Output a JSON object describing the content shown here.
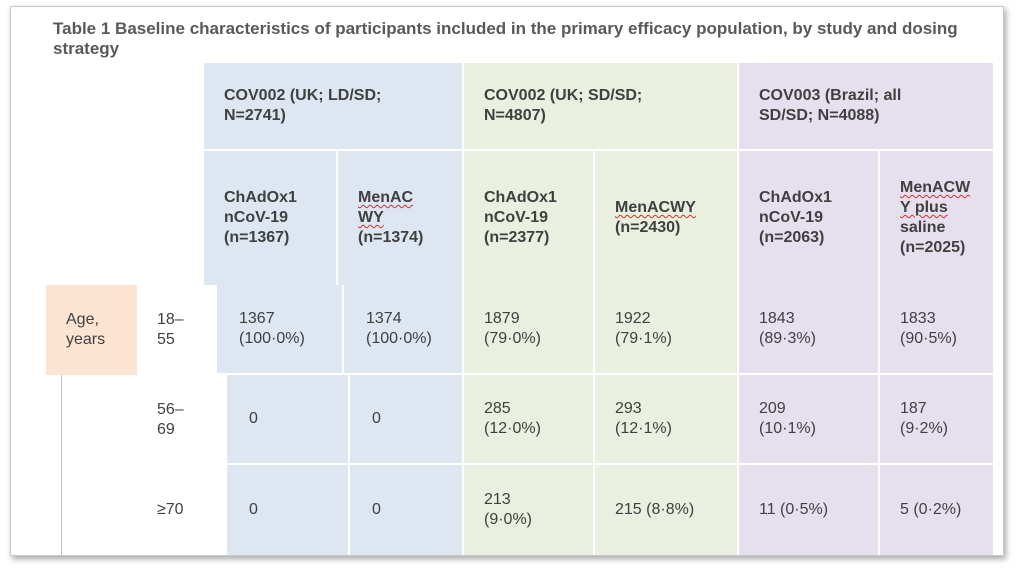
{
  "title": "Table 1 Baseline characteristics of participants included in the primary efficacy population, by study and dosing strategy",
  "groups": [
    {
      "line1": "COV002 (UK; LD/SD;",
      "line2": "N=2741)"
    },
    {
      "line1": "COV002 (UK; SD/SD;",
      "line2": "N=4807)"
    },
    {
      "line1": "COV003 (Brazil; all",
      "line2": "SD/SD; N=4088)"
    }
  ],
  "arms": [
    {
      "lines": [
        "ChAdOx1",
        "nCoV-19",
        "(n=1367)"
      ]
    },
    {
      "lines": [
        "MenAC",
        "WY",
        "(n=1374)"
      ]
    },
    {
      "lines": [
        "ChAdOx1",
        "nCoV-19",
        "(n=2377)"
      ]
    },
    {
      "lines": [
        "MenACWY",
        "(n=2430)"
      ]
    },
    {
      "lines": [
        "ChAdOx1",
        "nCoV-19",
        "(n=2063)"
      ]
    },
    {
      "lines": [
        "MenACW",
        "Y plus",
        "saline",
        "(n=2025)"
      ]
    }
  ],
  "row_label": {
    "line1": "Age,",
    "line2": "years"
  },
  "rows": [
    {
      "label": [
        "18–",
        "55"
      ],
      "cells": [
        [
          "1367",
          "(100·0%)"
        ],
        [
          "1374",
          "(100·0%)"
        ],
        [
          "1879",
          "(79·0%)"
        ],
        [
          "1922",
          "(79·1%)"
        ],
        [
          "1843",
          "(89·3%)"
        ],
        [
          "1833",
          "(90·5%)"
        ]
      ]
    },
    {
      "label": [
        "56–",
        "69"
      ],
      "cells": [
        [
          "0"
        ],
        [
          "0"
        ],
        [
          "285",
          "(12·0%)"
        ],
        [
          "293",
          "(12·1%)"
        ],
        [
          "209",
          "(10·1%)"
        ],
        [
          "187",
          "(9·2%)"
        ]
      ]
    },
    {
      "label": [
        "≥70"
      ],
      "cells": [
        [
          "0"
        ],
        [
          "0"
        ],
        [
          "213",
          "(9·0%)"
        ],
        [
          "215 (8·8%)"
        ],
        [
          "11 (0·5%)"
        ],
        [
          "5 (0·2%)"
        ]
      ]
    }
  ]
}
